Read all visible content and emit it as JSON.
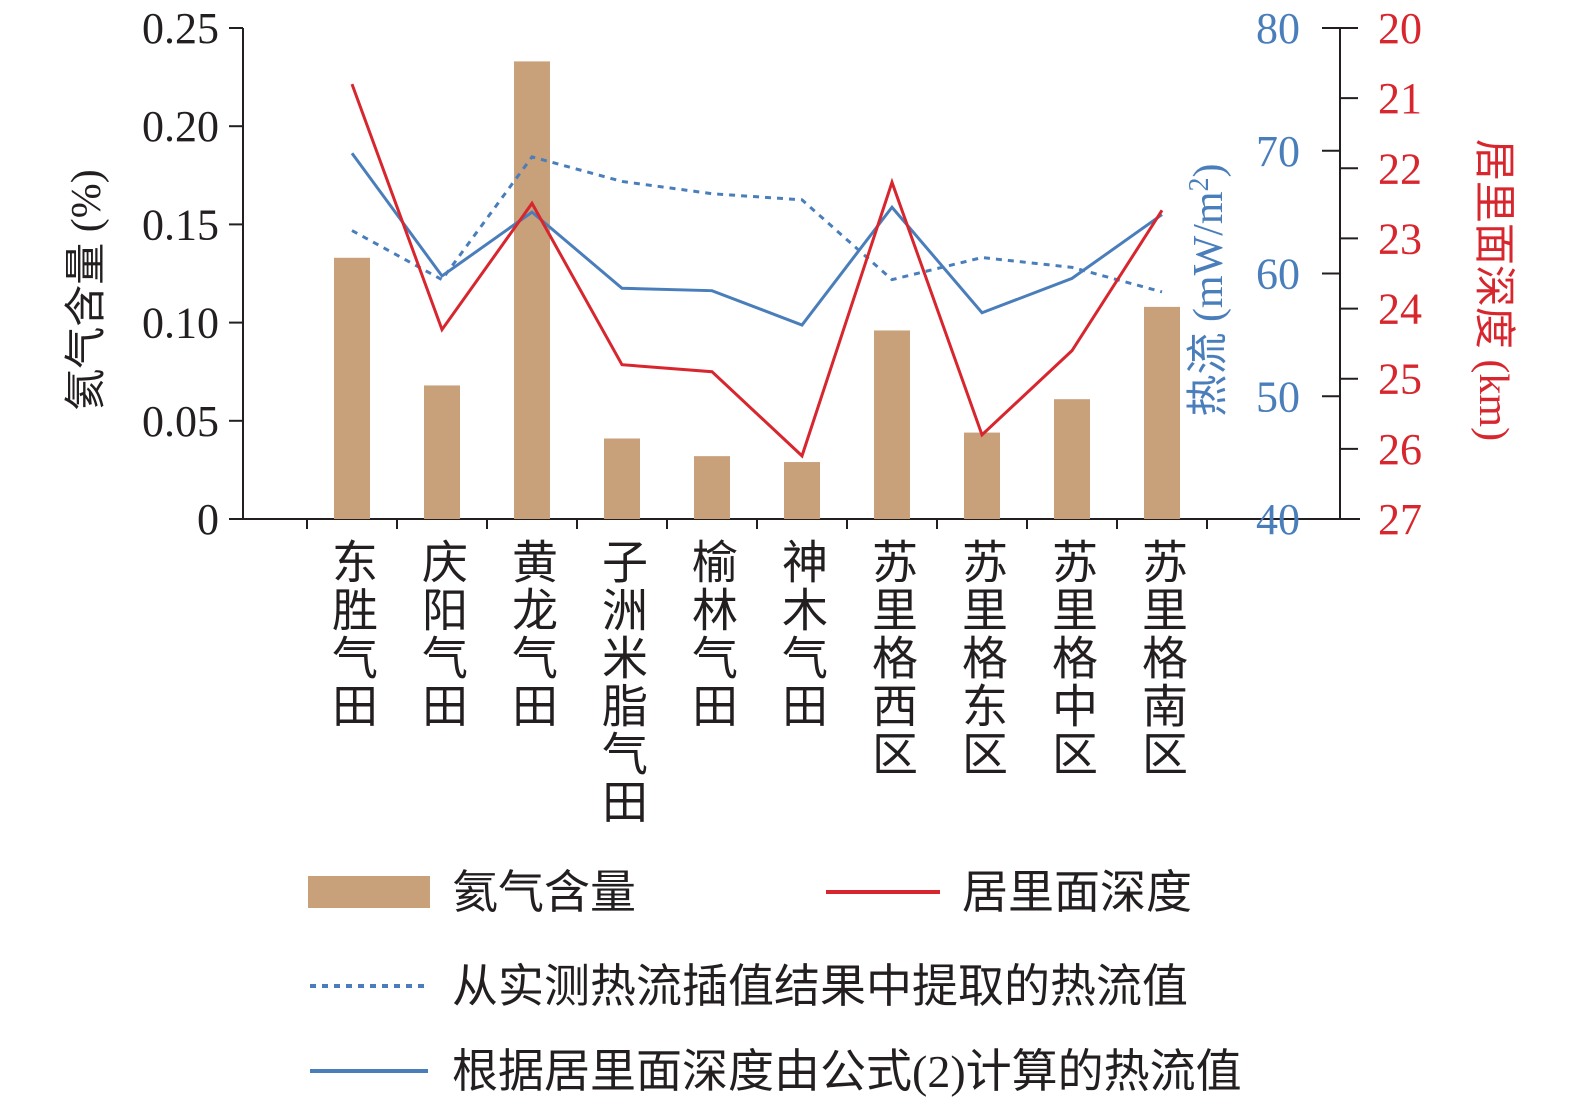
{
  "chart_data": {
    "type": "bar",
    "categories": [
      "东胜气田",
      "庆阳气田",
      "黄龙气田",
      "子洲米脂气田",
      "榆林气田",
      "神木气田",
      "苏里格西区",
      "苏里格东区",
      "苏里格中区",
      "苏里格南区"
    ],
    "y_left": {
      "label": "氦气含量 (%)",
      "ylim": [
        0,
        0.25
      ],
      "ticks": [
        "0",
        "0.05",
        "0.10",
        "0.15",
        "0.20",
        "0.25"
      ],
      "color": "#231f20"
    },
    "y_right_1": {
      "label_main": "热流 (mW/m",
      "label_sup": "2",
      "label_end": ")",
      "ylim": [
        40,
        80
      ],
      "ticks": [
        "40",
        "50",
        "60",
        "70",
        "80"
      ],
      "color": "#4a7ebb"
    },
    "y_right_2": {
      "label": "居里面深度 (km)",
      "ylim": [
        27,
        20
      ],
      "inverted": true,
      "ticks": [
        "20",
        "21",
        "22",
        "23",
        "24",
        "25",
        "26",
        "27"
      ],
      "color": "#d7262e"
    },
    "series": [
      {
        "name": "氦气含量",
        "kind": "bar",
        "axis": "left",
        "color": "#c8a07a",
        "values": [
          0.133,
          0.068,
          0.233,
          0.041,
          0.032,
          0.029,
          0.096,
          0.044,
          0.061,
          0.108
        ]
      },
      {
        "name": "居里面深度",
        "kind": "line",
        "axis": "right2",
        "color": "#d7262e",
        "style": "solid",
        "values": [
          20.8,
          24.3,
          22.5,
          24.8,
          24.9,
          26.1,
          22.2,
          25.8,
          24.6,
          22.6
        ]
      },
      {
        "name": "从实测热流插值结果中提取的热流值",
        "kind": "line",
        "axis": "right1",
        "color": "#4a7ebb",
        "style": "dotted",
        "values": [
          63.5,
          59.5,
          69.5,
          67.5,
          66.5,
          66.0,
          59.5,
          61.3,
          60.5,
          58.5
        ]
      },
      {
        "name": "根据居里面深度由公式(2)计算的热流值",
        "kind": "line",
        "axis": "right1",
        "color": "#4a7ebb",
        "style": "solid",
        "values": [
          69.8,
          59.8,
          65.0,
          58.8,
          58.6,
          55.8,
          65.4,
          56.8,
          59.6,
          64.8
        ]
      }
    ],
    "legend": "bottom"
  }
}
